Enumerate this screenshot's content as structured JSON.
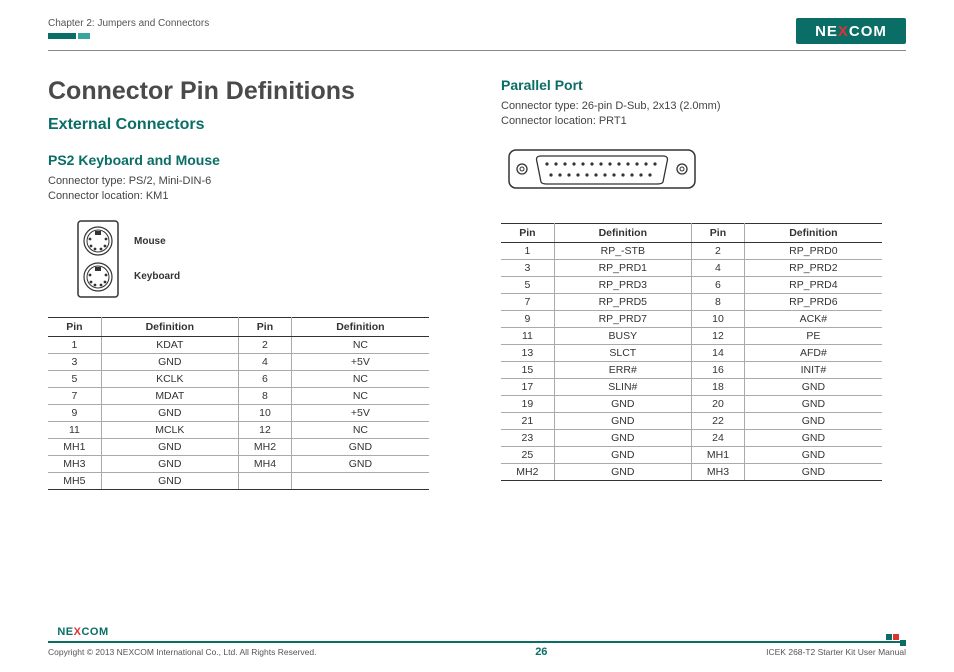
{
  "header": {
    "chapter": "Chapter 2: Jumpers and Connectors",
    "logo_text_pre": "NE",
    "logo_text_x": "X",
    "logo_text_post": "COM"
  },
  "main": {
    "title": "Connector Pin Definitions",
    "subtitle": "External Connectors"
  },
  "ps2": {
    "heading": "PS2 Keyboard and Mouse",
    "type_line": "Connector type: PS/2, Mini-DIN-6",
    "loc_line": "Connector location: KM1",
    "label_mouse": "Mouse",
    "label_keyboard": "Keyboard",
    "col_pin": "Pin",
    "col_def": "Definition",
    "rows": [
      [
        "1",
        "KDAT",
        "2",
        "NC"
      ],
      [
        "3",
        "GND",
        "4",
        "+5V"
      ],
      [
        "5",
        "KCLK",
        "6",
        "NC"
      ],
      [
        "7",
        "MDAT",
        "8",
        "NC"
      ],
      [
        "9",
        "GND",
        "10",
        "+5V"
      ],
      [
        "11",
        "MCLK",
        "12",
        "NC"
      ],
      [
        "MH1",
        "GND",
        "MH2",
        "GND"
      ],
      [
        "MH3",
        "GND",
        "MH4",
        "GND"
      ],
      [
        "MH5",
        "GND",
        "",
        ""
      ]
    ]
  },
  "parallel": {
    "heading": "Parallel Port",
    "type_line": "Connector type: 26-pin D-Sub, 2x13 (2.0mm)",
    "loc_line": "Connector location: PRT1",
    "col_pin": "Pin",
    "col_def": "Definition",
    "rows": [
      [
        "1",
        "RP_-STB",
        "2",
        "RP_PRD0"
      ],
      [
        "3",
        "RP_PRD1",
        "4",
        "RP_PRD2"
      ],
      [
        "5",
        "RP_PRD3",
        "6",
        "RP_PRD4"
      ],
      [
        "7",
        "RP_PRD5",
        "8",
        "RP_PRD6"
      ],
      [
        "9",
        "RP_PRD7",
        "10",
        "ACK#"
      ],
      [
        "11",
        "BUSY",
        "12",
        "PE"
      ],
      [
        "13",
        "SLCT",
        "14",
        "AFD#"
      ],
      [
        "15",
        "ERR#",
        "16",
        "INIT#"
      ],
      [
        "17",
        "SLIN#",
        "18",
        "GND"
      ],
      [
        "19",
        "GND",
        "20",
        "GND"
      ],
      [
        "21",
        "GND",
        "22",
        "GND"
      ],
      [
        "23",
        "GND",
        "24",
        "GND"
      ],
      [
        "25",
        "GND",
        "MH1",
        "GND"
      ],
      [
        "MH2",
        "GND",
        "MH3",
        "GND"
      ]
    ]
  },
  "footer": {
    "copyright": "Copyright © 2013 NEXCOM International Co., Ltd. All Rights Reserved.",
    "page": "26",
    "manual": "ICEK 268-T2 Starter Kit User Manual"
  },
  "style": {
    "brand_color": "#0a6e66",
    "accent_red": "#d33",
    "text_color": "#4a4a4a",
    "border_color": "#333333"
  }
}
